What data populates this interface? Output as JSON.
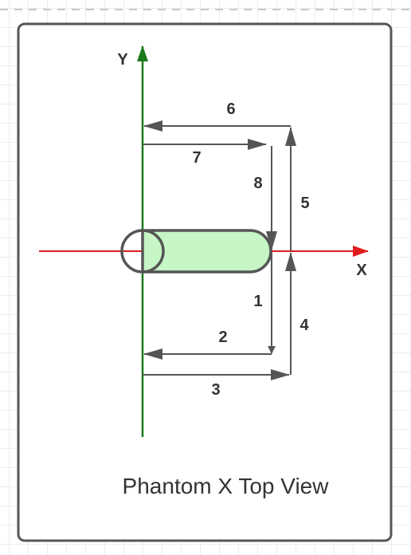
{
  "diagram": {
    "title": "Phantom X Top View",
    "axes": {
      "x_label": "X",
      "y_label": "Y",
      "x_color": "#e11b1b",
      "y_color": "#1a7a1a"
    },
    "phantom": {
      "fill_color": "#c6f5c6",
      "outline_color": "#555555"
    },
    "arrow_color": "#555555",
    "movements": [
      "1",
      "2",
      "3",
      "4",
      "5",
      "6",
      "7",
      "8"
    ]
  }
}
